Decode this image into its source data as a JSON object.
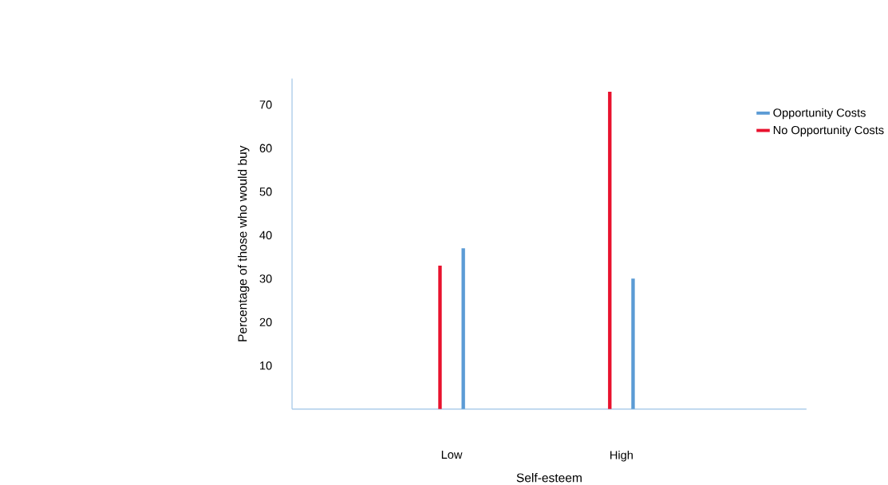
{
  "chart_data": {
    "type": "bar",
    "xlabel": "Self-esteem",
    "ylabel": "Percentage of those who would buy",
    "categories": [
      "Low",
      "High"
    ],
    "series": [
      {
        "name": "Opportunity Costs",
        "color": "#5b9bd5",
        "values": [
          37,
          30
        ]
      },
      {
        "name": "No Opportunity Costs",
        "color": "#e8112d",
        "values": [
          33,
          73
        ]
      }
    ],
    "ylim": [
      0,
      76
    ],
    "yticks": [
      10,
      20,
      30,
      40,
      50,
      60,
      70
    ],
    "grid": false,
    "legend": "top right"
  }
}
